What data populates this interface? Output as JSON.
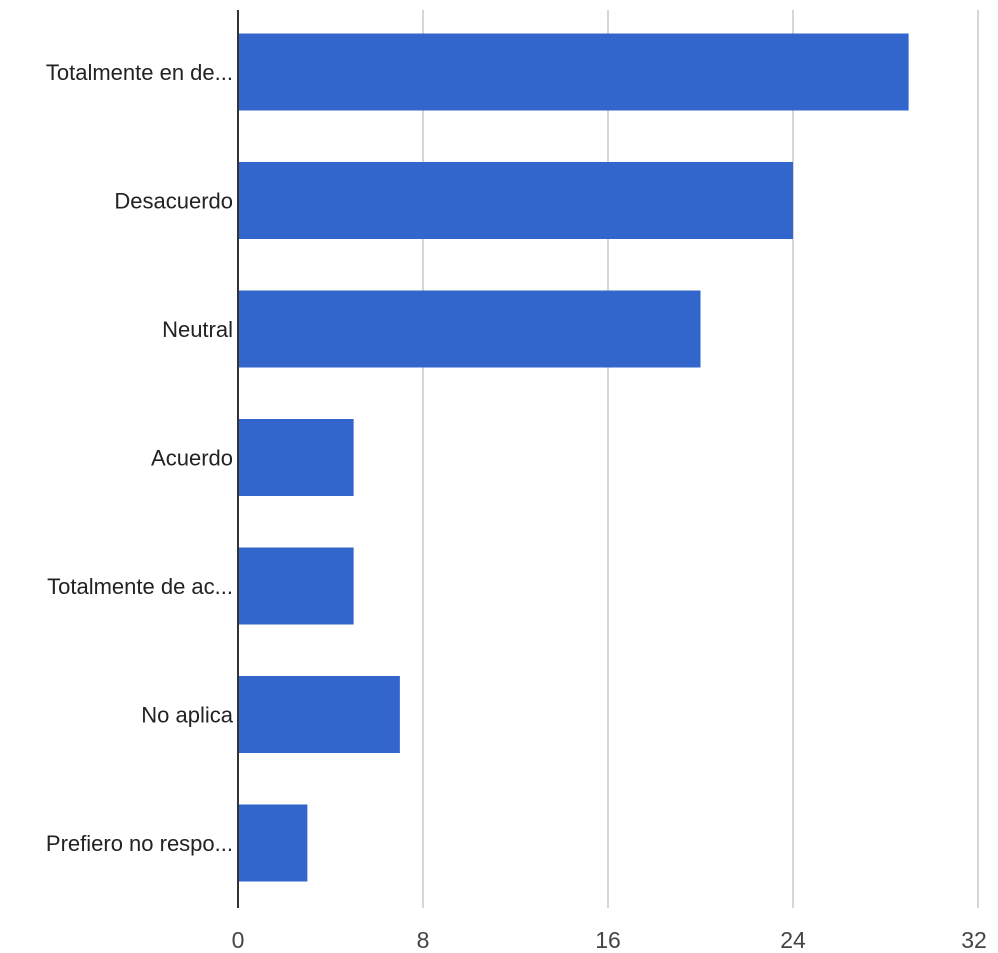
{
  "chart_data": {
    "type": "bar",
    "orientation": "horizontal",
    "categories": [
      "Totalmente en de...",
      "Desacuerdo",
      "Neutral",
      "Acuerdo",
      "Totalmente de ac...",
      "No aplica",
      "Prefiero no respo..."
    ],
    "values": [
      29,
      24,
      20,
      5,
      5,
      7,
      3
    ],
    "xlim": [
      0,
      32
    ],
    "xticks": [
      "0",
      "8",
      "16",
      "24",
      "32"
    ],
    "xtick_values": [
      0,
      8,
      16,
      24,
      32
    ],
    "bar_color": "#3366cc",
    "grid": true,
    "title": "",
    "xlabel": "",
    "ylabel": ""
  }
}
